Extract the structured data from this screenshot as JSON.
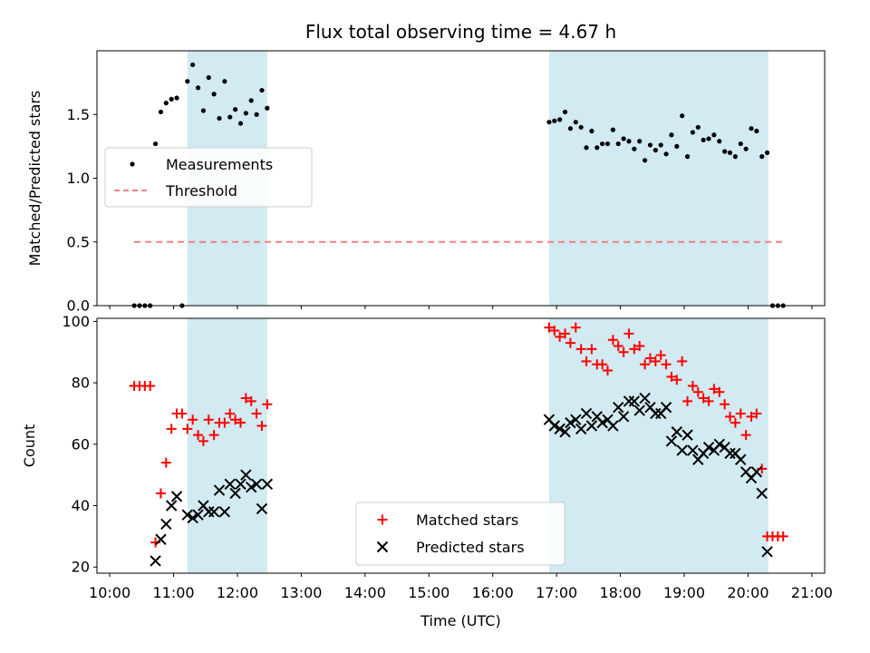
{
  "chart_data": [
    {
      "type": "scatter",
      "title": "Flux total observing time = 4.67 h",
      "ylabel": "Matched/Predicted stars",
      "xlabel": "",
      "xlim": [
        "10:00",
        "21:00"
      ],
      "ylim": [
        0,
        2.0
      ],
      "yticks": [
        0.0,
        0.5,
        1.0,
        1.5
      ],
      "ytick_labels": [
        "0.0",
        "0.5",
        "1.0",
        "1.5"
      ],
      "legend_location": "center-left",
      "shaded_intervals": [
        [
          "11:13",
          "12:28"
        ],
        [
          "16:53",
          "20:19"
        ]
      ],
      "shade_color": "#add8e6",
      "series": [
        {
          "name": "Measurements",
          "marker": "dot",
          "color": "#000000",
          "points": [
            [
              "10:23",
              0.0
            ],
            [
              "10:28",
              0.0
            ],
            [
              "10:33",
              0.0
            ],
            [
              "10:38",
              0.0
            ],
            [
              "10:43",
              1.27
            ],
            [
              "10:48",
              1.52
            ],
            [
              "10:53",
              1.59
            ],
            [
              "10:58",
              1.62
            ],
            [
              "11:03",
              1.63
            ],
            [
              "11:08",
              0.0
            ],
            [
              "11:13",
              1.76
            ],
            [
              "11:18",
              1.89
            ],
            [
              "11:23",
              1.71
            ],
            [
              "11:28",
              1.53
            ],
            [
              "11:33",
              1.79
            ],
            [
              "11:38",
              1.66
            ],
            [
              "11:43",
              1.47
            ],
            [
              "11:48",
              1.76
            ],
            [
              "11:53",
              1.48
            ],
            [
              "11:58",
              1.54
            ],
            [
              "12:03",
              1.43
            ],
            [
              "12:08",
              1.51
            ],
            [
              "12:13",
              1.61
            ],
            [
              "12:18",
              1.5
            ],
            [
              "12:23",
              1.69
            ],
            [
              "12:28",
              1.55
            ],
            [
              "16:53",
              1.44
            ],
            [
              "16:58",
              1.45
            ],
            [
              "17:03",
              1.46
            ],
            [
              "17:08",
              1.52
            ],
            [
              "17:13",
              1.39
            ],
            [
              "17:18",
              1.44
            ],
            [
              "17:23",
              1.4
            ],
            [
              "17:28",
              1.24
            ],
            [
              "17:33",
              1.37
            ],
            [
              "17:38",
              1.24
            ],
            [
              "17:43",
              1.27
            ],
            [
              "17:48",
              1.27
            ],
            [
              "17:53",
              1.38
            ],
            [
              "17:58",
              1.27
            ],
            [
              "18:03",
              1.31
            ],
            [
              "18:08",
              1.29
            ],
            [
              "18:13",
              1.23
            ],
            [
              "18:18",
              1.29
            ],
            [
              "18:23",
              1.14
            ],
            [
              "18:28",
              1.26
            ],
            [
              "18:33",
              1.22
            ],
            [
              "18:38",
              1.26
            ],
            [
              "18:43",
              1.19
            ],
            [
              "18:48",
              1.34
            ],
            [
              "18:53",
              1.25
            ],
            [
              "18:58",
              1.49
            ],
            [
              "19:03",
              1.17
            ],
            [
              "19:08",
              1.36
            ],
            [
              "19:13",
              1.4
            ],
            [
              "19:18",
              1.3
            ],
            [
              "19:23",
              1.31
            ],
            [
              "19:28",
              1.34
            ],
            [
              "19:33",
              1.29
            ],
            [
              "19:38",
              1.21
            ],
            [
              "19:43",
              1.2
            ],
            [
              "19:48",
              1.17
            ],
            [
              "19:53",
              1.27
            ],
            [
              "19:58",
              1.23
            ],
            [
              "20:03",
              1.39
            ],
            [
              "20:08",
              1.37
            ],
            [
              "20:13",
              1.17
            ],
            [
              "20:18",
              1.2
            ],
            [
              "20:23",
              0.0
            ],
            [
              "20:28",
              0.0
            ],
            [
              "20:33",
              0.0
            ]
          ]
        },
        {
          "name": "Threshold",
          "line_style": "dashed",
          "color": "#f08080",
          "points": [
            [
              "10:23",
              0.5
            ],
            [
              "20:33",
              0.5
            ]
          ]
        }
      ]
    },
    {
      "type": "scatter",
      "title": "",
      "ylabel": "Count",
      "xlabel": "Time (UTC)",
      "xlim": [
        "10:00",
        "21:00"
      ],
      "ylim": [
        18,
        101
      ],
      "yticks": [
        20,
        40,
        60,
        80,
        100
      ],
      "ytick_labels": [
        "20",
        "40",
        "60",
        "80",
        "100"
      ],
      "xticks": [
        "10:00",
        "11:00",
        "12:00",
        "13:00",
        "14:00",
        "15:00",
        "16:00",
        "17:00",
        "18:00",
        "19:00",
        "20:00",
        "21:00"
      ],
      "legend_location": "lower-center",
      "shaded_intervals": [
        [
          "11:13",
          "12:28"
        ],
        [
          "16:53",
          "20:19"
        ]
      ],
      "shade_color": "#add8e6",
      "series": [
        {
          "name": "Matched stars",
          "marker": "plus",
          "color": "#ff0000",
          "points": [
            [
              "10:23",
              79
            ],
            [
              "10:28",
              79
            ],
            [
              "10:33",
              79
            ],
            [
              "10:38",
              79
            ],
            [
              "10:43",
              28
            ],
            [
              "10:48",
              44
            ],
            [
              "10:53",
              54
            ],
            [
              "10:58",
              65
            ],
            [
              "11:03",
              70
            ],
            [
              "11:08",
              70
            ],
            [
              "11:13",
              65
            ],
            [
              "11:18",
              68
            ],
            [
              "11:23",
              63
            ],
            [
              "11:28",
              61
            ],
            [
              "11:33",
              68
            ],
            [
              "11:38",
              63
            ],
            [
              "11:43",
              67
            ],
            [
              "11:48",
              67
            ],
            [
              "11:53",
              70
            ],
            [
              "11:58",
              68
            ],
            [
              "12:03",
              67
            ],
            [
              "12:08",
              75
            ],
            [
              "12:13",
              74
            ],
            [
              "12:18",
              70
            ],
            [
              "12:23",
              66
            ],
            [
              "12:28",
              73
            ],
            [
              "16:53",
              98
            ],
            [
              "16:58",
              97
            ],
            [
              "17:03",
              95
            ],
            [
              "17:08",
              96
            ],
            [
              "17:13",
              93
            ],
            [
              "17:18",
              98
            ],
            [
              "17:23",
              91
            ],
            [
              "17:28",
              87
            ],
            [
              "17:33",
              91
            ],
            [
              "17:38",
              86
            ],
            [
              "17:43",
              86
            ],
            [
              "17:48",
              84
            ],
            [
              "17:53",
              94
            ],
            [
              "17:58",
              92
            ],
            [
              "18:03",
              90
            ],
            [
              "18:08",
              96
            ],
            [
              "18:13",
              91
            ],
            [
              "18:18",
              92
            ],
            [
              "18:23",
              86
            ],
            [
              "18:28",
              88
            ],
            [
              "18:33",
              87
            ],
            [
              "18:38",
              89
            ],
            [
              "18:43",
              86
            ],
            [
              "18:48",
              82
            ],
            [
              "18:53",
              81
            ],
            [
              "18:58",
              87
            ],
            [
              "19:03",
              74
            ],
            [
              "19:08",
              79
            ],
            [
              "19:13",
              77
            ],
            [
              "19:18",
              75
            ],
            [
              "19:23",
              74
            ],
            [
              "19:28",
              78
            ],
            [
              "19:33",
              77
            ],
            [
              "19:38",
              73
            ],
            [
              "19:43",
              69
            ],
            [
              "19:48",
              67
            ],
            [
              "19:53",
              70
            ],
            [
              "19:58",
              63
            ],
            [
              "20:03",
              69
            ],
            [
              "20:08",
              70
            ],
            [
              "20:13",
              52
            ],
            [
              "20:18",
              30
            ],
            [
              "20:23",
              30
            ],
            [
              "20:28",
              30
            ],
            [
              "20:33",
              30
            ]
          ]
        },
        {
          "name": "Predicted stars",
          "marker": "x",
          "color": "#000000",
          "points": [
            [
              "10:43",
              22
            ],
            [
              "10:48",
              29
            ],
            [
              "10:53",
              34
            ],
            [
              "10:58",
              40
            ],
            [
              "11:03",
              43
            ],
            [
              "11:13",
              37
            ],
            [
              "11:18",
              36
            ],
            [
              "11:23",
              37
            ],
            [
              "11:28",
              40
            ],
            [
              "11:33",
              38
            ],
            [
              "11:38",
              38
            ],
            [
              "11:43",
              45
            ],
            [
              "11:48",
              38
            ],
            [
              "11:53",
              47
            ],
            [
              "11:58",
              44
            ],
            [
              "12:03",
              47
            ],
            [
              "12:08",
              50
            ],
            [
              "12:13",
              46
            ],
            [
              "12:18",
              47
            ],
            [
              "12:23",
              39
            ],
            [
              "12:28",
              47
            ],
            [
              "16:53",
              68
            ],
            [
              "16:58",
              66
            ],
            [
              "17:03",
              65
            ],
            [
              "17:08",
              64
            ],
            [
              "17:13",
              67
            ],
            [
              "17:18",
              68
            ],
            [
              "17:23",
              65
            ],
            [
              "17:28",
              70
            ],
            [
              "17:33",
              66
            ],
            [
              "17:38",
              69
            ],
            [
              "17:43",
              67
            ],
            [
              "17:48",
              68
            ],
            [
              "17:53",
              66
            ],
            [
              "17:58",
              72
            ],
            [
              "18:03",
              69
            ],
            [
              "18:08",
              74
            ],
            [
              "18:13",
              74
            ],
            [
              "18:18",
              71
            ],
            [
              "18:23",
              75
            ],
            [
              "18:28",
              72
            ],
            [
              "18:33",
              70
            ],
            [
              "18:38",
              70
            ],
            [
              "18:43",
              72
            ],
            [
              "18:48",
              61
            ],
            [
              "18:53",
              64
            ],
            [
              "18:58",
              58
            ],
            [
              "19:03",
              63
            ],
            [
              "19:08",
              58
            ],
            [
              "19:13",
              55
            ],
            [
              "19:18",
              57
            ],
            [
              "19:23",
              59
            ],
            [
              "19:28",
              58
            ],
            [
              "19:33",
              60
            ],
            [
              "19:38",
              59
            ],
            [
              "19:43",
              57
            ],
            [
              "19:48",
              57
            ],
            [
              "19:53",
              55
            ],
            [
              "19:58",
              51
            ],
            [
              "20:03",
              49
            ],
            [
              "20:08",
              51
            ],
            [
              "20:13",
              44
            ],
            [
              "20:18",
              25
            ]
          ]
        }
      ]
    }
  ]
}
